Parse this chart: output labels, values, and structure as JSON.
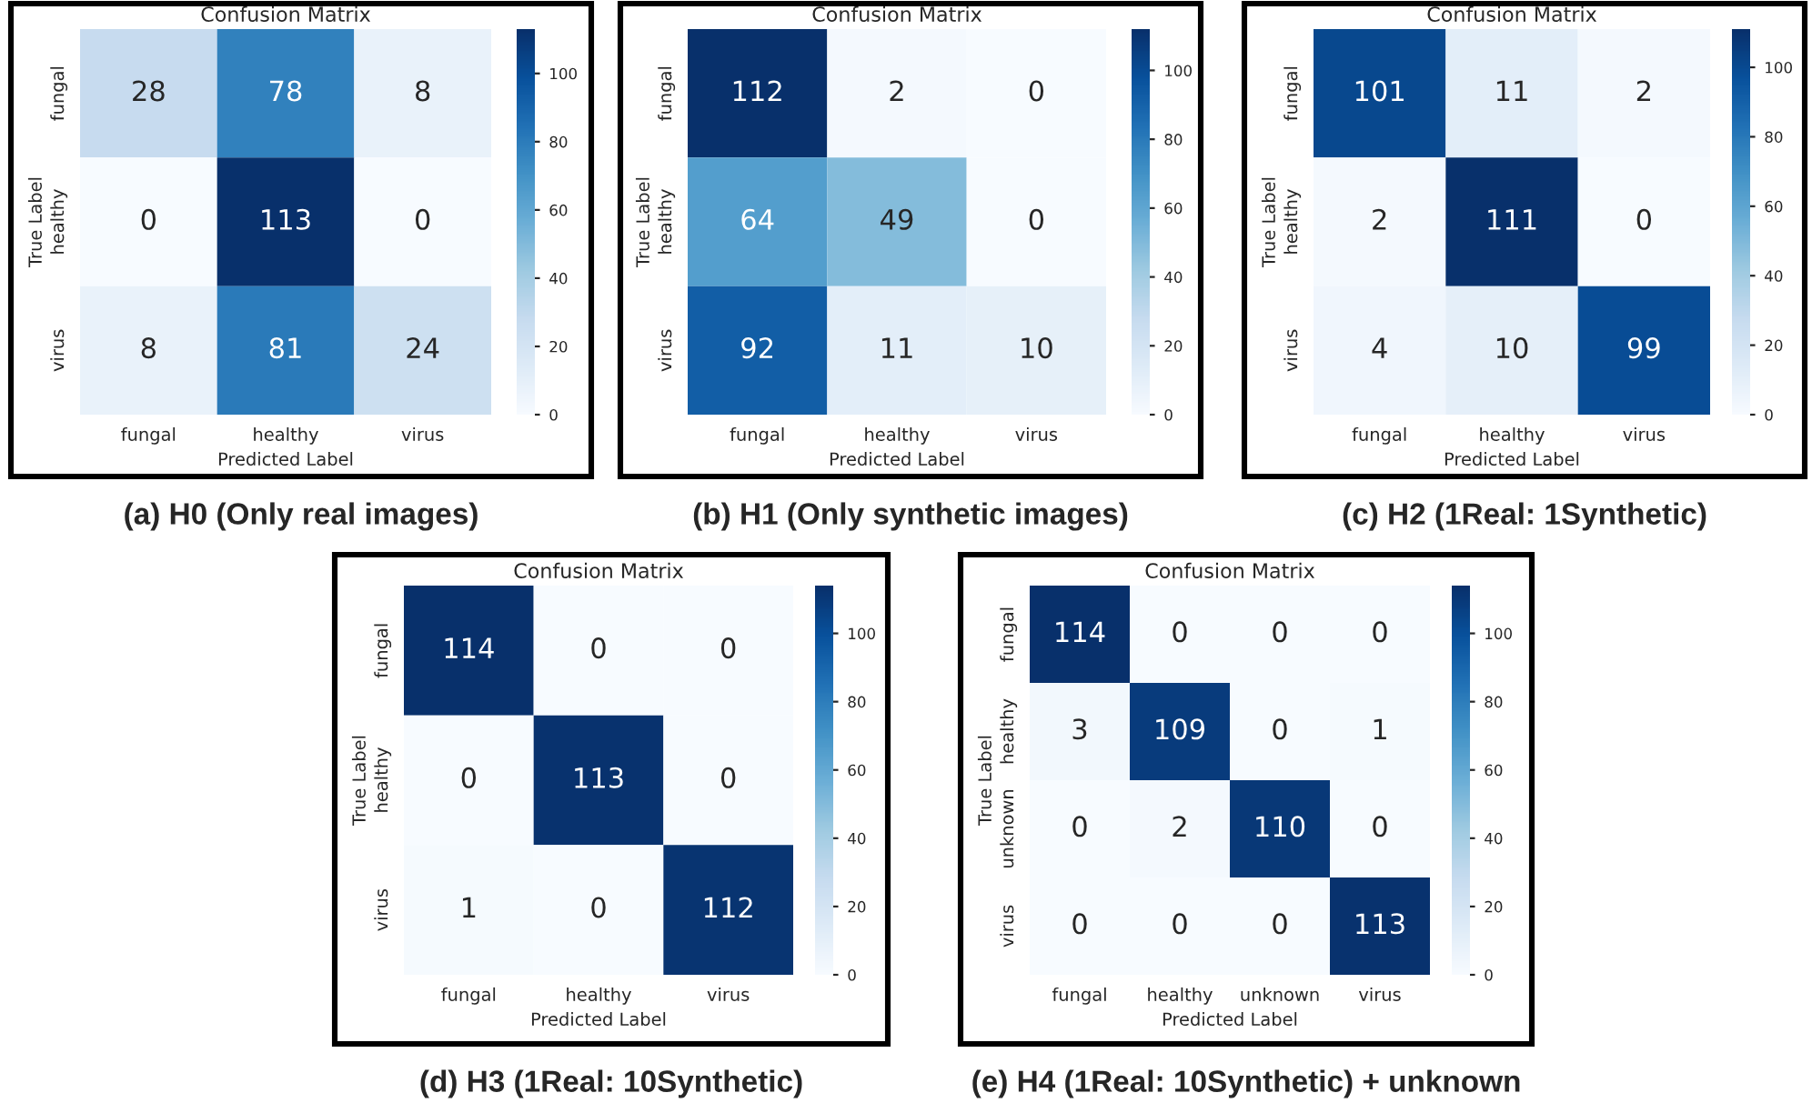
{
  "chart_data": [
    {
      "type": "heatmap",
      "title": "Confusion Matrix",
      "xlabel": "Predicted Label",
      "ylabel": "True Label",
      "categories": [
        "fungal",
        "healthy",
        "virus"
      ],
      "y_categories": [
        "fungal",
        "healthy",
        "virus"
      ],
      "cells": [
        [
          28,
          78,
          8
        ],
        [
          0,
          113,
          0
        ],
        [
          8,
          81,
          24
        ]
      ],
      "clim": [
        0,
        113
      ],
      "cticks": [
        0,
        20,
        40,
        60,
        80,
        100
      ],
      "data_labels": true,
      "annotations": [
        "(a) H0 (Only real images)"
      ]
    },
    {
      "type": "heatmap",
      "title": "Confusion Matrix",
      "xlabel": "Predicted Label",
      "ylabel": "True Label",
      "categories": [
        "fungal",
        "healthy",
        "virus"
      ],
      "y_categories": [
        "fungal",
        "healthy",
        "virus"
      ],
      "cells": [
        [
          112,
          2,
          0
        ],
        [
          64,
          49,
          0
        ],
        [
          92,
          11,
          10
        ]
      ],
      "clim": [
        0,
        112
      ],
      "cticks": [
        0,
        20,
        40,
        60,
        80,
        100
      ],
      "data_labels": true,
      "annotations": [
        "(b) H1 (Only synthetic images)"
      ]
    },
    {
      "type": "heatmap",
      "title": "Confusion Matrix",
      "xlabel": "Predicted Label",
      "ylabel": "True Label",
      "categories": [
        "fungal",
        "healthy",
        "virus"
      ],
      "y_categories": [
        "fungal",
        "healthy",
        "virus"
      ],
      "cells": [
        [
          101,
          11,
          2
        ],
        [
          2,
          111,
          0
        ],
        [
          4,
          10,
          99
        ]
      ],
      "clim": [
        0,
        111
      ],
      "cticks": [
        0,
        20,
        40,
        60,
        80,
        100
      ],
      "data_labels": true,
      "annotations": [
        "(c) H2 (1Real: 1Synthetic)"
      ]
    },
    {
      "type": "heatmap",
      "title": "Confusion Matrix",
      "xlabel": "Predicted Label",
      "ylabel": "True Label",
      "categories": [
        "fungal",
        "healthy",
        "virus"
      ],
      "y_categories": [
        "fungal",
        "healthy",
        "virus"
      ],
      "cells": [
        [
          114,
          0,
          0
        ],
        [
          0,
          113,
          0
        ],
        [
          1,
          0,
          112
        ]
      ],
      "clim": [
        0,
        114
      ],
      "cticks": [
        0,
        20,
        40,
        60,
        80,
        100
      ],
      "data_labels": true,
      "annotations": [
        "(d) H3 (1Real: 10Synthetic)"
      ]
    },
    {
      "type": "heatmap",
      "title": "Confusion Matrix",
      "xlabel": "Predicted Label",
      "ylabel": "True Label",
      "categories": [
        "fungal",
        "healthy",
        "unknown",
        "virus"
      ],
      "y_categories": [
        "fungal",
        "healthy",
        "unknown",
        "virus"
      ],
      "cells": [
        [
          114,
          0,
          0,
          0
        ],
        [
          3,
          109,
          0,
          1
        ],
        [
          0,
          2,
          110,
          0
        ],
        [
          0,
          0,
          0,
          113
        ]
      ],
      "clim": [
        0,
        114
      ],
      "cticks": [
        0,
        20,
        40,
        60,
        80,
        100
      ],
      "data_labels": true,
      "annotations": [
        "(e) H4 (1Real: 10Synthetic) + unknown"
      ]
    }
  ]
}
